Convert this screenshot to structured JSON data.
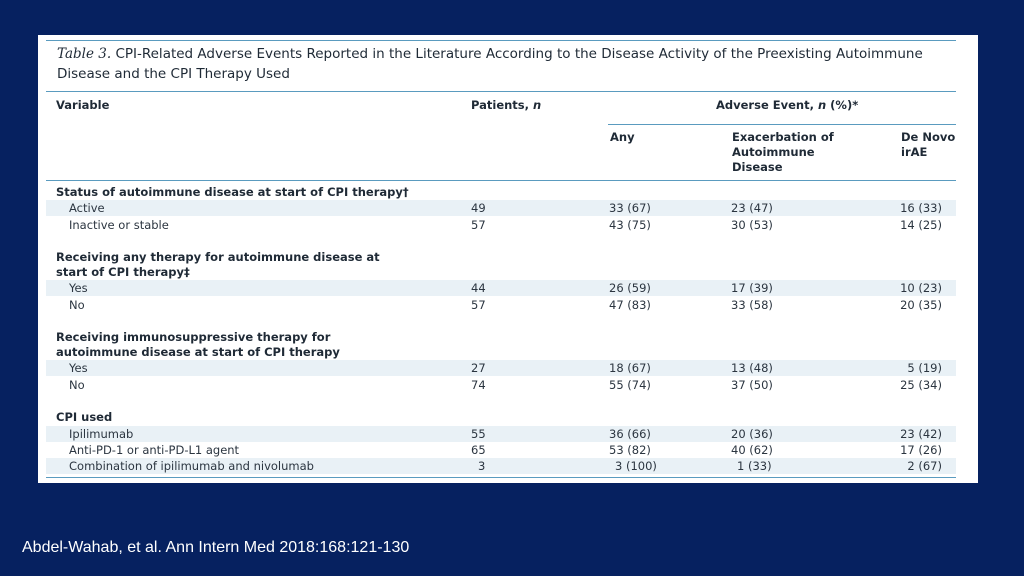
{
  "table": {
    "title_label": "Table 3.",
    "title_text": "CPI-Related Adverse Events Reported in the Literature According to the Disease Activity of the Preexisting Autoimmune Disease and the CPI Therapy Used",
    "headers": {
      "variable": "Variable",
      "patients_prefix": "Patients, ",
      "patients_n": "n",
      "adverse_prefix": "Adverse Event, ",
      "adverse_n": "n",
      "adverse_suffix": " (%)*",
      "any": "Any",
      "exacerbation": "Exacerbation of Autoimmune Disease",
      "de_novo": "De Novo irAE"
    },
    "sections": [
      {
        "title": "Status of autoimmune disease at start of CPI therapy†",
        "rows": [
          {
            "label": "Active",
            "patients": "49",
            "any": "33 (67)",
            "exacerbation": "23 (47)",
            "de_novo": "16 (33)"
          },
          {
            "label": "Inactive or stable",
            "patients": "57",
            "any": "43 (75)",
            "exacerbation": "30 (53)",
            "de_novo": "14 (25)"
          }
        ]
      },
      {
        "title": "Receiving any therapy for autoimmune disease at start of CPI therapy‡",
        "rows": [
          {
            "label": "Yes",
            "patients": "44",
            "any": "26 (59)",
            "exacerbation": "17 (39)",
            "de_novo": "10 (23)"
          },
          {
            "label": "No",
            "patients": "57",
            "any": "47 (83)",
            "exacerbation": "33 (58)",
            "de_novo": "20 (35)"
          }
        ]
      },
      {
        "title": "Receiving immunosuppressive therapy for autoimmune disease at start of CPI therapy",
        "rows": [
          {
            "label": "Yes",
            "patients": "27",
            "any": "18 (67)",
            "exacerbation": "13 (48)",
            "de_novo": "5 (19)"
          },
          {
            "label": "No",
            "patients": "74",
            "any": "55 (74)",
            "exacerbation": "37 (50)",
            "de_novo": "25 (34)"
          }
        ]
      },
      {
        "title": "CPI used",
        "rows": [
          {
            "label": "Ipilimumab",
            "patients": "55",
            "any": "36 (66)",
            "exacerbation": "20 (36)",
            "de_novo": "23 (42)"
          },
          {
            "label": "Anti-PD-1 or anti-PD-L1 agent",
            "patients": "65",
            "any": "53 (82)",
            "exacerbation": "40 (62)",
            "de_novo": "17 (26)"
          },
          {
            "label": "Combination of ipilimumab and nivolumab",
            "patients": "3",
            "any": "3 (100)",
            "exacerbation": "1 (33)",
            "de_novo": "2 (67)"
          }
        ]
      }
    ]
  },
  "citation": "Abdel-Wahab, et al.  Ann Intern Med 2018:168:121-130"
}
